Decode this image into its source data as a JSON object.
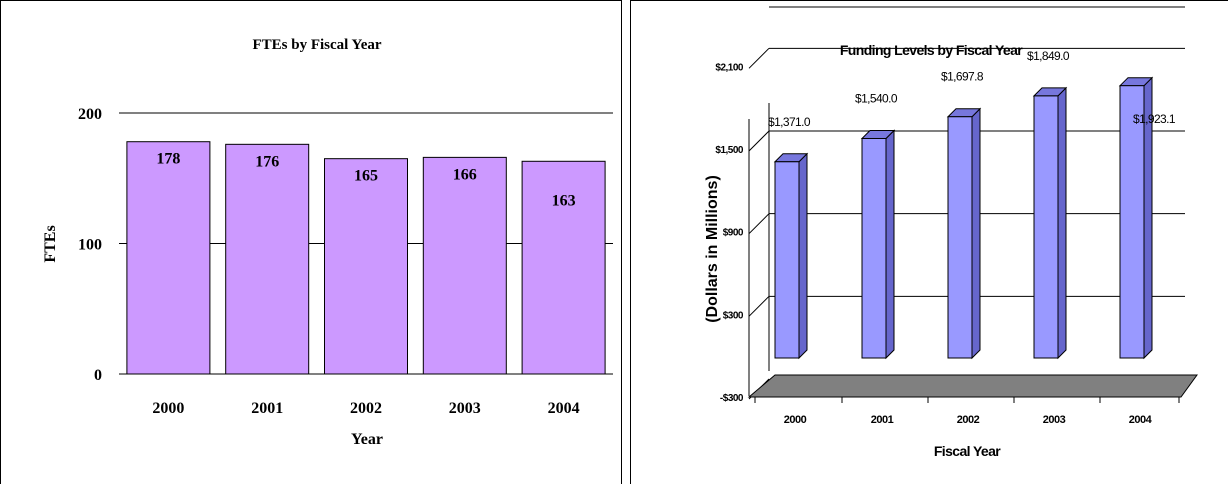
{
  "chart_data": [
    {
      "type": "bar",
      "title": "FTEs by Fiscal Year",
      "xlabel": "Year",
      "ylabel": "FTEs",
      "categories": [
        "2000",
        "2001",
        "2002",
        "2003",
        "2004"
      ],
      "values": [
        178,
        176,
        165,
        166,
        163
      ],
      "data_labels": [
        "178",
        "176",
        "165",
        "166",
        "163"
      ],
      "ylim": [
        0,
        200
      ],
      "yticks": [
        0,
        100,
        200
      ],
      "ytick_labels": [
        "0",
        "100",
        "200"
      ],
      "grid": true,
      "legend": "none",
      "bar_color": "#cc99ff"
    },
    {
      "type": "bar",
      "title": "Funding Levels by Fiscal Year",
      "xlabel": "Fiscal Year",
      "ylabel": "(Dollars in Millions)",
      "categories": [
        "2000",
        "2001",
        "2002",
        "2003",
        "2004"
      ],
      "values": [
        1371.0,
        1540.0,
        1697.8,
        1849.0,
        1923.1
      ],
      "data_labels": [
        "$1,371.0",
        "$1,540.0",
        "$1,697.8",
        "$1,849.0",
        "$1,923.1"
      ],
      "ylim": [
        -300,
        2400
      ],
      "yticks": [
        -300,
        300,
        900,
        1500,
        2100
      ],
      "ytick_labels": [
        "-$300",
        "$300",
        "$900",
        "$1,500",
        "$2,100"
      ],
      "grid": true,
      "legend": "none",
      "style": "3d",
      "bar_color": "#9999ff",
      "floor_color": "#808080"
    }
  ]
}
